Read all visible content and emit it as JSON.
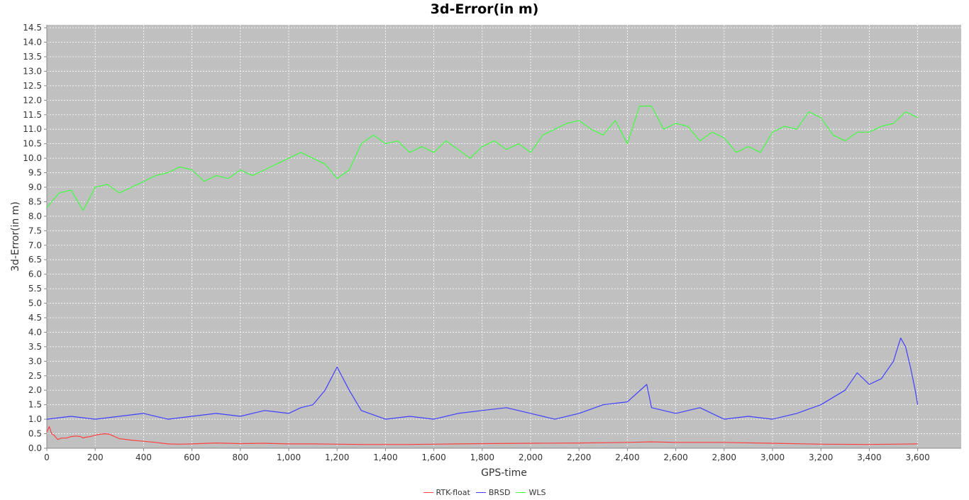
{
  "chart_data": {
    "type": "line",
    "title": "3d-Error(in m)",
    "xlabel": "GPS-time",
    "ylabel": "3d-Error(in m)",
    "xlim": [
      0,
      3780
    ],
    "ylim": [
      0,
      14.6
    ],
    "x_ticks": [
      0,
      200,
      400,
      600,
      800,
      1000,
      1200,
      1400,
      1600,
      1800,
      2000,
      2200,
      2400,
      2600,
      2800,
      3000,
      3200,
      3400,
      3600
    ],
    "x_tick_labels": [
      "0",
      "200",
      "400",
      "600",
      "800",
      "1,000",
      "1,200",
      "1,400",
      "1,600",
      "1,800",
      "2,000",
      "2,200",
      "2,400",
      "2,600",
      "2,800",
      "3,000",
      "3,200",
      "3,400",
      "3,600"
    ],
    "y_ticks": [
      0.0,
      0.5,
      1.0,
      1.5,
      2.0,
      2.5,
      3.0,
      3.5,
      4.0,
      4.5,
      5.0,
      5.5,
      6.0,
      6.5,
      7.0,
      7.5,
      8.0,
      8.5,
      9.0,
      9.5,
      10.0,
      10.5,
      11.0,
      11.5,
      12.0,
      12.5,
      13.0,
      13.5,
      14.0,
      14.5
    ],
    "y_tick_labels": [
      "0.0",
      "0.5",
      "1.0",
      "1.5",
      "2.0",
      "2.5",
      "3.0",
      "3.5",
      "4.0",
      "4.5",
      "5.0",
      "5.5",
      "6.0",
      "6.5",
      "7.0",
      "7.5",
      "8.0",
      "8.5",
      "9.0",
      "9.5",
      "10.0",
      "10.5",
      "11.0",
      "11.5",
      "12.0",
      "12.5",
      "13.0",
      "13.5",
      "14.0",
      "14.5"
    ],
    "grid": true,
    "legend_position": "bottom",
    "background": "#c0c0c0",
    "series": [
      {
        "name": "RTK-float",
        "color": "#ff4040",
        "x": [
          0,
          10,
          20,
          30,
          45,
          60,
          80,
          100,
          120,
          140,
          150,
          160,
          180,
          200,
          220,
          240,
          260,
          280,
          300,
          350,
          400,
          450,
          500,
          550,
          600,
          700,
          800,
          900,
          1000,
          1100,
          1200,
          1300,
          1400,
          1500,
          1600,
          1800,
          2000,
          2200,
          2400,
          2500,
          2600,
          2800,
          3000,
          3200,
          3400,
          3600
        ],
        "values": [
          0.55,
          0.75,
          0.5,
          0.45,
          0.3,
          0.35,
          0.35,
          0.4,
          0.42,
          0.4,
          0.35,
          0.38,
          0.4,
          0.45,
          0.48,
          0.5,
          0.48,
          0.4,
          0.33,
          0.28,
          0.24,
          0.2,
          0.15,
          0.14,
          0.15,
          0.18,
          0.16,
          0.17,
          0.15,
          0.15,
          0.14,
          0.13,
          0.13,
          0.13,
          0.14,
          0.16,
          0.17,
          0.18,
          0.2,
          0.22,
          0.2,
          0.2,
          0.17,
          0.14,
          0.13,
          0.15
        ]
      },
      {
        "name": "BRSD",
        "color": "#4040ff",
        "x": [
          0,
          100,
          200,
          300,
          400,
          500,
          600,
          700,
          800,
          900,
          1000,
          1050,
          1100,
          1150,
          1200,
          1250,
          1300,
          1400,
          1500,
          1600,
          1700,
          1800,
          1900,
          2000,
          2100,
          2200,
          2300,
          2400,
          2480,
          2500,
          2600,
          2700,
          2800,
          2900,
          3000,
          3100,
          3200,
          3300,
          3350,
          3400,
          3450,
          3500,
          3530,
          3550,
          3570,
          3590,
          3600
        ],
        "values": [
          1.0,
          1.1,
          1.0,
          1.1,
          1.2,
          1.0,
          1.1,
          1.2,
          1.1,
          1.3,
          1.2,
          1.4,
          1.5,
          2.0,
          2.8,
          2.0,
          1.3,
          1.0,
          1.1,
          1.0,
          1.2,
          1.3,
          1.4,
          1.2,
          1.0,
          1.2,
          1.5,
          1.6,
          2.2,
          1.4,
          1.2,
          1.4,
          1.0,
          1.1,
          1.0,
          1.2,
          1.5,
          2.0,
          2.6,
          2.2,
          2.4,
          3.0,
          3.8,
          3.5,
          2.8,
          2.0,
          1.5
        ]
      },
      {
        "name": "WLS",
        "color": "#40ff40",
        "x": [
          0,
          50,
          100,
          150,
          200,
          250,
          300,
          350,
          400,
          450,
          500,
          550,
          600,
          650,
          700,
          750,
          800,
          850,
          900,
          950,
          1000,
          1050,
          1100,
          1150,
          1200,
          1250,
          1300,
          1350,
          1400,
          1450,
          1500,
          1550,
          1600,
          1650,
          1700,
          1750,
          1800,
          1850,
          1900,
          1950,
          2000,
          2050,
          2100,
          2150,
          2200,
          2250,
          2300,
          2350,
          2400,
          2450,
          2500,
          2550,
          2600,
          2650,
          2700,
          2750,
          2800,
          2850,
          2900,
          2950,
          3000,
          3050,
          3100,
          3150,
          3200,
          3250,
          3300,
          3350,
          3400,
          3450,
          3500,
          3550,
          3600
        ],
        "values": [
          8.3,
          8.8,
          8.9,
          8.2,
          9.0,
          9.1,
          8.8,
          9.0,
          9.2,
          9.4,
          9.5,
          9.7,
          9.6,
          9.2,
          9.4,
          9.3,
          9.6,
          9.4,
          9.6,
          9.8,
          10.0,
          10.2,
          10.0,
          9.8,
          9.3,
          9.6,
          10.5,
          10.8,
          10.5,
          10.6,
          10.2,
          10.4,
          10.2,
          10.6,
          10.3,
          10.0,
          10.4,
          10.6,
          10.3,
          10.5,
          10.2,
          10.8,
          11.0,
          11.2,
          11.3,
          11.0,
          10.8,
          11.3,
          10.5,
          11.8,
          11.8,
          11.0,
          11.2,
          11.1,
          10.6,
          10.9,
          10.7,
          10.2,
          10.4,
          10.2,
          10.9,
          11.1,
          11.0,
          11.6,
          11.4,
          10.8,
          10.6,
          10.9,
          10.9,
          11.1,
          11.2,
          11.6,
          11.4
        ]
      }
    ]
  }
}
